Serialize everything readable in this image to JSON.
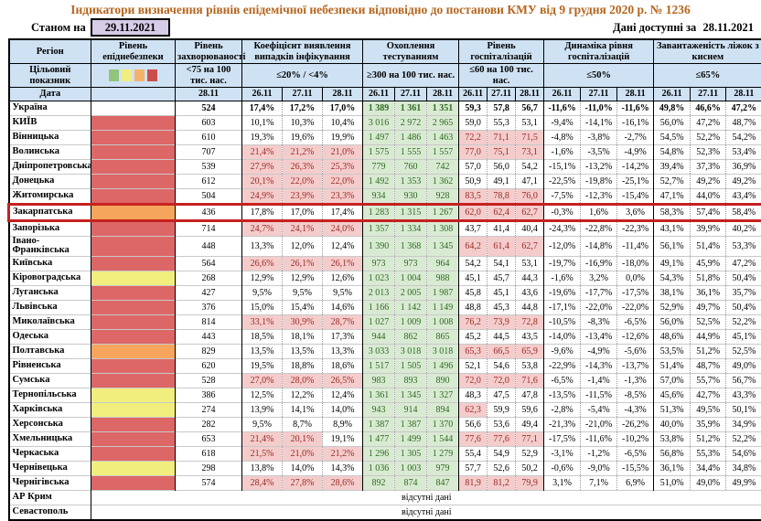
{
  "title": "Індикатори визначення рівнів епідемічної небезпеки відповідно до постанови КМУ від 9 грудня 2020 р. № 1236",
  "as_of_label": "Станом на",
  "as_of_date": "29.11.2021",
  "data_available_label": "Дані доступні за",
  "data_available_date": "28.11.2021",
  "colors": {
    "title_text": "#b5651d",
    "header_bg": "#cfe2f3",
    "as_of_bg": "#d6cce8",
    "level_red": "#dd6666",
    "level_orange": "#f6a55c",
    "level_yellow": "#f1ee7d",
    "cell_green": "#d9ead3",
    "cell_pink": "#f4cccc",
    "highlight_border": "#c52120"
  },
  "table": {
    "col_region": "Регіон",
    "col_level": "Рівень епіднебезпеки",
    "target_label": "Цільовий показник",
    "date_label": "Дата",
    "no_data_text": "відсутні дані",
    "legend_colors": [
      "#93c47d",
      "#f1ee7d",
      "#f6b26b",
      "#cc4d4d"
    ],
    "groups": [
      {
        "label": "Рівень захворюваності",
        "threshold": "<75 на 100 тис. нас.",
        "dates": [
          "28.11"
        ]
      },
      {
        "label": "Коефіцієнт виявлення випадків інфікування",
        "threshold": "≤20% / <4%",
        "dates": [
          "26.11",
          "27.11",
          "28.11"
        ]
      },
      {
        "label": "Охоплення тестуванням",
        "threshold": "≥300 на 100 тис. нас.",
        "dates": [
          "26.11",
          "27.11",
          "28.11"
        ]
      },
      {
        "label": "Рівень госпіталізацій",
        "threshold": "≤60 на 100 тис. нас.",
        "dates": [
          "26.11",
          "27.11",
          "28.11"
        ]
      },
      {
        "label": "Динаміка рівня госпіталізацій",
        "threshold": "≤50%",
        "dates": [
          "26.11",
          "27.11",
          "28.11"
        ]
      },
      {
        "label": "Завантаженість ліжок з киснем",
        "threshold": "≤65%",
        "dates": [
          "26.11",
          "27.11",
          "28.11"
        ]
      }
    ],
    "thresholds": {
      "detect_max": 20,
      "hosp_max": 60,
      "dynamics_max": 50,
      "beds_max": 65
    },
    "rows": [
      {
        "region": "Україна",
        "level": "",
        "bold": true,
        "morbidity": "524",
        "detect": [
          "17,4%",
          "17,2%",
          "17,0%"
        ],
        "testing": [
          "1 389",
          "1 361",
          "1 351"
        ],
        "hosp": [
          "59,3",
          "57,8",
          "56,7"
        ],
        "dynamics": [
          "-11,6%",
          "-11,0%",
          "-11,6%"
        ],
        "beds": [
          "49,8%",
          "46,6%",
          "47,2%"
        ]
      },
      {
        "region": "КИЇВ",
        "level": "red",
        "morbidity": "603",
        "detect": [
          "10,1%",
          "10,3%",
          "10,4%"
        ],
        "testing": [
          "3 016",
          "2 972",
          "2 965"
        ],
        "hosp": [
          "59,0",
          "55,3",
          "53,1"
        ],
        "dynamics": [
          "-9,4%",
          "-14,1%",
          "-16,1%"
        ],
        "beds": [
          "56,0%",
          "47,2%",
          "48,7%"
        ]
      },
      {
        "region": "Вінницька",
        "level": "red",
        "morbidity": "610",
        "detect": [
          "19,3%",
          "19,6%",
          "19,9%"
        ],
        "testing": [
          "1 497",
          "1 486",
          "1 463"
        ],
        "hosp": [
          "72,2",
          "71,1",
          "71,5"
        ],
        "dynamics": [
          "-4,8%",
          "-3,8%",
          "-2,7%"
        ],
        "beds": [
          "54,5%",
          "52,2%",
          "54,2%"
        ]
      },
      {
        "region": "Волинська",
        "level": "red",
        "morbidity": "707",
        "detect": [
          "21,4%",
          "21,2%",
          "21,0%"
        ],
        "testing": [
          "1 575",
          "1 555",
          "1 557"
        ],
        "hosp": [
          "77,0",
          "75,1",
          "73,1"
        ],
        "dynamics": [
          "-1,6%",
          "-3,5%",
          "-4,9%"
        ],
        "beds": [
          "54,8%",
          "52,3%",
          "53,4%"
        ]
      },
      {
        "region": "Дніпропетровська",
        "level": "red",
        "morbidity": "539",
        "detect": [
          "27,9%",
          "26,3%",
          "25,3%"
        ],
        "testing": [
          "779",
          "760",
          "742"
        ],
        "hosp": [
          "57,0",
          "56,0",
          "54,2"
        ],
        "dynamics": [
          "-15,1%",
          "-13,2%",
          "-14,2%"
        ],
        "beds": [
          "39,4%",
          "37,3%",
          "36,9%"
        ]
      },
      {
        "region": "Донецька",
        "level": "red",
        "morbidity": "612",
        "detect": [
          "20,1%",
          "22,0%",
          "22,0%"
        ],
        "testing": [
          "1 492",
          "1 353",
          "1 362"
        ],
        "hosp": [
          "50,9",
          "49,1",
          "47,1"
        ],
        "dynamics": [
          "-22,5%",
          "-19,8%",
          "-25,1%"
        ],
        "beds": [
          "52,7%",
          "49,2%",
          "49,2%"
        ]
      },
      {
        "region": "Житомирська",
        "level": "red",
        "morbidity": "504",
        "detect": [
          "24,9%",
          "23,9%",
          "23,3%"
        ],
        "testing": [
          "934",
          "930",
          "928"
        ],
        "hosp": [
          "83,5",
          "78,8",
          "76,0"
        ],
        "dynamics": [
          "-7,5%",
          "-12,3%",
          "-15,4%"
        ],
        "beds": [
          "47,1%",
          "44,0%",
          "43,4%"
        ]
      },
      {
        "region": "Закарпатська",
        "level": "orange",
        "highlight": true,
        "morbidity": "436",
        "detect": [
          "17,8%",
          "17,0%",
          "17,4%"
        ],
        "testing": [
          "1 283",
          "1 315",
          "1 267"
        ],
        "hosp": [
          "62,0",
          "62,4",
          "62,7"
        ],
        "dynamics": [
          "-0,3%",
          "1,6%",
          "3,6%"
        ],
        "beds": [
          "58,3%",
          "57,4%",
          "58,4%"
        ]
      },
      {
        "region": "Запорізька",
        "level": "red",
        "morbidity": "714",
        "detect": [
          "24,7%",
          "24,1%",
          "24,0%"
        ],
        "testing": [
          "1 357",
          "1 334",
          "1 308"
        ],
        "hosp": [
          "43,7",
          "41,4",
          "40,4"
        ],
        "dynamics": [
          "-24,3%",
          "-22,8%",
          "-22,3%"
        ],
        "beds": [
          "43,1%",
          "39,9%",
          "40,2%"
        ]
      },
      {
        "region": "Івано-Франківська",
        "level": "red",
        "morbidity": "448",
        "detect": [
          "13,3%",
          "12,0%",
          "12,4%"
        ],
        "testing": [
          "1 390",
          "1 368",
          "1 345"
        ],
        "hosp": [
          "64,2",
          "61,4",
          "62,7"
        ],
        "dynamics": [
          "-12,0%",
          "-14,8%",
          "-11,4%"
        ],
        "beds": [
          "56,1%",
          "51,4%",
          "53,3%"
        ]
      },
      {
        "region": "Київська",
        "level": "red",
        "morbidity": "564",
        "detect": [
          "26,6%",
          "26,1%",
          "26,1%"
        ],
        "testing": [
          "973",
          "973",
          "964"
        ],
        "hosp": [
          "54,2",
          "54,1",
          "53,1"
        ],
        "dynamics": [
          "-19,7%",
          "-16,9%",
          "-18,0%"
        ],
        "beds": [
          "49,1%",
          "45,9%",
          "47,2%"
        ]
      },
      {
        "region": "Кіровоградська",
        "level": "yellow",
        "morbidity": "268",
        "detect": [
          "12,9%",
          "12,9%",
          "12,6%"
        ],
        "testing": [
          "1 023",
          "1 004",
          "988"
        ],
        "hosp": [
          "45,1",
          "45,7",
          "44,3"
        ],
        "dynamics": [
          "-1,6%",
          "3,2%",
          "0,0%"
        ],
        "beds": [
          "54,3%",
          "51,8%",
          "50,4%"
        ]
      },
      {
        "region": "Луганська",
        "level": "red",
        "morbidity": "427",
        "detect": [
          "9,5%",
          "9,5%",
          "9,5%"
        ],
        "testing": [
          "2 013",
          "2 005",
          "1 987"
        ],
        "hosp": [
          "45,8",
          "45,1",
          "43,6"
        ],
        "dynamics": [
          "-19,6%",
          "-17,7%",
          "-17,5%"
        ],
        "beds": [
          "38,1%",
          "36,1%",
          "35,7%"
        ]
      },
      {
        "region": "Львівська",
        "level": "red",
        "morbidity": "376",
        "detect": [
          "15,0%",
          "15,4%",
          "14,6%"
        ],
        "testing": [
          "1 166",
          "1 142",
          "1 149"
        ],
        "hosp": [
          "48,8",
          "45,3",
          "44,8"
        ],
        "dynamics": [
          "-17,1%",
          "-22,0%",
          "-22,0%"
        ],
        "beds": [
          "52,9%",
          "49,7%",
          "50,4%"
        ]
      },
      {
        "region": "Миколаївська",
        "level": "red",
        "morbidity": "814",
        "detect": [
          "33,1%",
          "30,9%",
          "28,7%"
        ],
        "testing": [
          "1 027",
          "1 009",
          "1 008"
        ],
        "hosp": [
          "76,2",
          "73,9",
          "72,8"
        ],
        "dynamics": [
          "-10,5%",
          "-8,3%",
          "-6,5%"
        ],
        "beds": [
          "56,0%",
          "52,5%",
          "52,2%"
        ]
      },
      {
        "region": "Одеська",
        "level": "red",
        "morbidity": "443",
        "detect": [
          "18,5%",
          "18,1%",
          "17,3%"
        ],
        "testing": [
          "944",
          "862",
          "865"
        ],
        "hosp": [
          "45,2",
          "44,5",
          "43,5"
        ],
        "dynamics": [
          "-14,0%",
          "-13,4%",
          "-12,6%"
        ],
        "beds": [
          "48,6%",
          "44,9%",
          "45,1%"
        ]
      },
      {
        "region": "Полтавська",
        "level": "orange",
        "morbidity": "829",
        "detect": [
          "13,5%",
          "13,5%",
          "13,3%"
        ],
        "testing": [
          "3 033",
          "3 018",
          "3 018"
        ],
        "hosp": [
          "65,3",
          "66,5",
          "65,9"
        ],
        "dynamics": [
          "-9,6%",
          "-4,9%",
          "-5,6%"
        ],
        "beds": [
          "53,5%",
          "51,2%",
          "52,5%"
        ]
      },
      {
        "region": "Рівненська",
        "level": "red",
        "morbidity": "620",
        "detect": [
          "19,5%",
          "18,8%",
          "18,6%"
        ],
        "testing": [
          "1 517",
          "1 505",
          "1 496"
        ],
        "hosp": [
          "52,1",
          "54,6",
          "53,8"
        ],
        "dynamics": [
          "-22,9%",
          "-14,3%",
          "-13,7%"
        ],
        "beds": [
          "51,4%",
          "48,7%",
          "49,0%"
        ]
      },
      {
        "region": "Сумська",
        "level": "red",
        "morbidity": "528",
        "detect": [
          "27,0%",
          "28,0%",
          "26,5%"
        ],
        "testing": [
          "983",
          "893",
          "890"
        ],
        "hosp": [
          "72,0",
          "72,0",
          "71,6"
        ],
        "dynamics": [
          "-6,5%",
          "-1,4%",
          "-1,3%"
        ],
        "beds": [
          "57,0%",
          "55,7%",
          "56,7%"
        ]
      },
      {
        "region": "Тернопільська",
        "level": "yellow",
        "morbidity": "386",
        "detect": [
          "12,5%",
          "12,2%",
          "12,4%"
        ],
        "testing": [
          "1 361",
          "1 345",
          "1 327"
        ],
        "hosp": [
          "48,3",
          "47,5",
          "47,8"
        ],
        "dynamics": [
          "-13,5%",
          "-11,5%",
          "-8,5%"
        ],
        "beds": [
          "45,6%",
          "42,7%",
          "43,3%"
        ]
      },
      {
        "region": "Харківська",
        "level": "yellow",
        "morbidity": "274",
        "detect": [
          "13,9%",
          "14,1%",
          "14,0%"
        ],
        "testing": [
          "943",
          "914",
          "894"
        ],
        "hosp": [
          "62,3",
          "59,9",
          "59,6"
        ],
        "dynamics": [
          "-2,8%",
          "-5,4%",
          "-4,3%"
        ],
        "beds": [
          "51,3%",
          "49,5%",
          "50,1%"
        ]
      },
      {
        "region": "Херсонська",
        "level": "red",
        "morbidity": "282",
        "detect": [
          "9,5%",
          "8,7%",
          "8,9%"
        ],
        "testing": [
          "1 387",
          "1 387",
          "1 370"
        ],
        "hosp": [
          "56,6",
          "53,6",
          "49,4"
        ],
        "dynamics": [
          "-21,3%",
          "-21,0%",
          "-26,2%"
        ],
        "beds": [
          "40,0%",
          "35,9%",
          "34,9%"
        ]
      },
      {
        "region": "Хмельницька",
        "level": "red",
        "morbidity": "653",
        "detect": [
          "21,4%",
          "20,1%",
          "19,1%"
        ],
        "testing": [
          "1 477",
          "1 499",
          "1 544"
        ],
        "hosp": [
          "77,6",
          "77,6",
          "77,1"
        ],
        "dynamics": [
          "-17,5%",
          "-11,6%",
          "-10,2%"
        ],
        "beds": [
          "53,8%",
          "51,2%",
          "52,2%"
        ]
      },
      {
        "region": "Черкаська",
        "level": "red",
        "morbidity": "618",
        "detect": [
          "21,5%",
          "21,0%",
          "21,2%"
        ],
        "testing": [
          "1 296",
          "1 305",
          "1 279"
        ],
        "hosp": [
          "55,4",
          "54,9",
          "52,9"
        ],
        "dynamics": [
          "-3,1%",
          "-1,2%",
          "-6,5%"
        ],
        "beds": [
          "56,8%",
          "55,3%",
          "54,6%"
        ]
      },
      {
        "region": "Чернівецька",
        "level": "yellow",
        "morbidity": "298",
        "detect": [
          "13,8%",
          "14,0%",
          "14,3%"
        ],
        "testing": [
          "1 036",
          "1 003",
          "979"
        ],
        "hosp": [
          "57,7",
          "52,6",
          "50,2"
        ],
        "dynamics": [
          "-0,6%",
          "-9,0%",
          "-15,5%"
        ],
        "beds": [
          "36,1%",
          "34,4%",
          "34,8%"
        ]
      },
      {
        "region": "Чернігівська",
        "level": "red",
        "morbidity": "574",
        "detect": [
          "28,4%",
          "27,8%",
          "28,6%"
        ],
        "testing": [
          "892",
          "874",
          "847"
        ],
        "hosp": [
          "81,9",
          "81,2",
          "79,9"
        ],
        "dynamics": [
          "3,1%",
          "7,1%",
          "6,9%"
        ],
        "beds": [
          "51,0%",
          "49,0%",
          "49,9%"
        ]
      },
      {
        "region": "АР Крим",
        "no_data": true
      },
      {
        "region": "Севастополь",
        "no_data": true
      }
    ]
  }
}
